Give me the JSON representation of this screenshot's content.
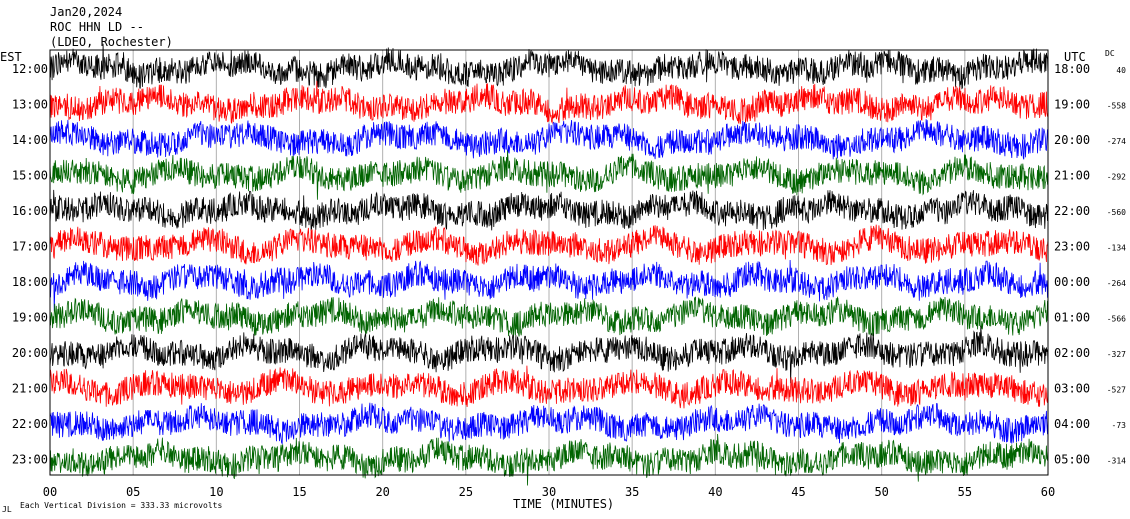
{
  "header": {
    "date": "Jan20,2024",
    "station": "ROC HHN LD --",
    "network": "(LDEO, Rochester)"
  },
  "footer": {
    "scale_note": "Each Vertical Division =  333.33 microvolts"
  },
  "colors": {
    "black": "#000000",
    "red": "#ff0000",
    "blue": "#0000ff",
    "green": "#006400"
  },
  "chart_data": {
    "type": "line",
    "title": "",
    "left_axis_label": "EST",
    "right_axis_label": "UTC",
    "dc_label": "DC",
    "xlabel": "TIME (MINUTES)",
    "xlim": [
      0,
      60
    ],
    "x_ticks": [
      "00",
      "05",
      "10",
      "15",
      "20",
      "25",
      "30",
      "35",
      "40",
      "45",
      "50",
      "55",
      "60"
    ],
    "grid": "vertical",
    "traces": [
      {
        "est": "12:00",
        "utc": "18:00",
        "dc": "40",
        "color": "#000000"
      },
      {
        "est": "13:00",
        "utc": "19:00",
        "dc": "-558",
        "color": "#ff0000"
      },
      {
        "est": "14:00",
        "utc": "20:00",
        "dc": "-274",
        "color": "#0000ff"
      },
      {
        "est": "15:00",
        "utc": "21:00",
        "dc": "-292",
        "color": "#006400"
      },
      {
        "est": "16:00",
        "utc": "22:00",
        "dc": "-560",
        "color": "#000000"
      },
      {
        "est": "17:00",
        "utc": "23:00",
        "dc": "-134",
        "color": "#ff0000"
      },
      {
        "est": "18:00",
        "utc": "00:00",
        "dc": "-264",
        "color": "#0000ff"
      },
      {
        "est": "19:00",
        "utc": "01:00",
        "dc": "-566",
        "color": "#006400"
      },
      {
        "est": "20:00",
        "utc": "02:00",
        "dc": "-327",
        "color": "#000000"
      },
      {
        "est": "21:00",
        "utc": "03:00",
        "dc": "-527",
        "color": "#ff0000"
      },
      {
        "est": "22:00",
        "utc": "04:00",
        "dc": "-73",
        "color": "#0000ff"
      },
      {
        "est": "23:00",
        "utc": "05:00",
        "dc": "-314",
        "color": "#006400"
      }
    ]
  }
}
